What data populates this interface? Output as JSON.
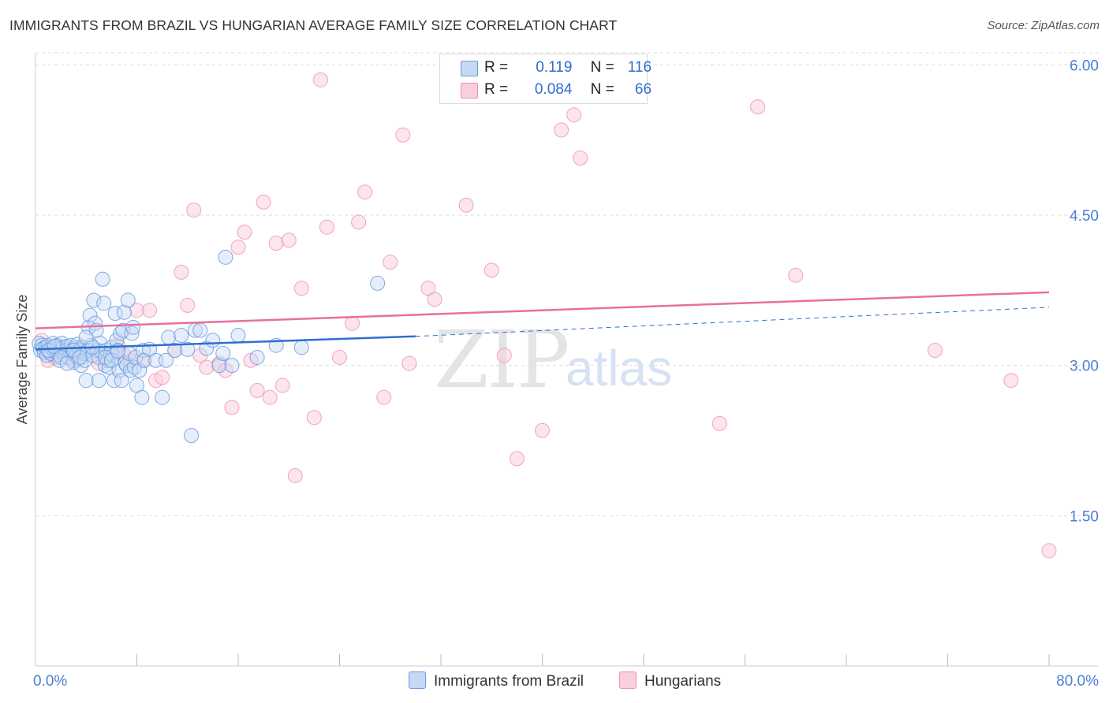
{
  "title": "IMMIGRANTS FROM BRAZIL VS HUNGARIAN AVERAGE FAMILY SIZE CORRELATION CHART",
  "source": "Source: ZipAtlas.com",
  "watermark": {
    "zip": "ZIP",
    "atlas": "atlas"
  },
  "legend": {
    "rows": [
      {
        "r_label": "R =",
        "r_value": "0.119",
        "n_label": "N =",
        "n_value": "116",
        "color": "#6a9be0"
      },
      {
        "r_label": "R =",
        "r_value": "0.084",
        "n_label": "N =",
        "n_value": "66",
        "color": "#ef8fae"
      }
    ]
  },
  "bottom_legend": {
    "brazil": "Immigrants from Brazil",
    "hungarians": "Hungarians"
  },
  "chart_data": {
    "type": "scatter",
    "title": "IMMIGRANTS FROM BRAZIL VS HUNGARIAN AVERAGE FAMILY SIZE CORRELATION CHART",
    "xlabel": "",
    "ylabel": "Average Family Size",
    "xlim": [
      0,
      80
    ],
    "ylim": [
      0,
      6.12
    ],
    "x_tick_labels": [
      "0.0%",
      "80.0%"
    ],
    "y_ticks": [
      1.5,
      3.0,
      4.5,
      6.0
    ],
    "y_tick_labels": [
      "1.50",
      "3.00",
      "4.50",
      "6.00"
    ],
    "grid": "horizontal dashed",
    "legend_placement": "top-center",
    "colors": {
      "brazil": "#6a9be0",
      "hungarians": "#ef8fae",
      "brazil_line": "#2f6fcf",
      "hungarians_line": "#e8719a"
    },
    "series": [
      {
        "name": "Immigrants from Brazil",
        "R": 0.119,
        "N": 116,
        "trend": {
          "x0": 0,
          "y0": 3.16,
          "x1": 30,
          "y1": 3.29,
          "dashed_to_x": 80,
          "dashed_to_y": 3.58
        },
        "points": [
          [
            0.3,
            3.22
          ],
          [
            0.4,
            3.15
          ],
          [
            0.5,
            3.2
          ],
          [
            0.6,
            3.17
          ],
          [
            0.7,
            3.13
          ],
          [
            0.8,
            3.18
          ],
          [
            0.9,
            3.1
          ],
          [
            1.0,
            3.2
          ],
          [
            1.1,
            3.15
          ],
          [
            1.2,
            3.12
          ],
          [
            1.3,
            3.18
          ],
          [
            1.4,
            3.22
          ],
          [
            1.5,
            3.14
          ],
          [
            1.6,
            3.16
          ],
          [
            1.7,
            3.2
          ],
          [
            1.8,
            3.11
          ],
          [
            1.9,
            3.05
          ],
          [
            2.0,
            3.15
          ],
          [
            2.1,
            3.22
          ],
          [
            2.2,
            3.18
          ],
          [
            2.3,
            3.1
          ],
          [
            2.4,
            3.15
          ],
          [
            2.5,
            3.19
          ],
          [
            2.6,
            3.08
          ],
          [
            2.7,
            3.14
          ],
          [
            2.8,
            3.2
          ],
          [
            2.9,
            3.12
          ],
          [
            3.0,
            3.03
          ],
          [
            3.1,
            3.17
          ],
          [
            3.2,
            3.1
          ],
          [
            3.3,
            3.21
          ],
          [
            3.4,
            3.06
          ],
          [
            3.5,
            3.15
          ],
          [
            3.6,
            3.0
          ],
          [
            3.7,
            3.18
          ],
          [
            3.8,
            3.12
          ],
          [
            3.9,
            3.05
          ],
          [
            4.0,
            2.85
          ],
          [
            4.1,
            3.15
          ],
          [
            4.2,
            3.38
          ],
          [
            4.3,
            3.5
          ],
          [
            4.4,
            3.2
          ],
          [
            4.5,
            3.1
          ],
          [
            4.6,
            3.65
          ],
          [
            4.7,
            3.42
          ],
          [
            4.8,
            3.35
          ],
          [
            4.9,
            3.15
          ],
          [
            5.0,
            3.08
          ],
          [
            5.1,
            3.22
          ],
          [
            5.2,
            3.14
          ],
          [
            5.3,
            3.86
          ],
          [
            5.4,
            3.62
          ],
          [
            5.5,
            3.0
          ],
          [
            5.6,
            3.15
          ],
          [
            5.7,
            3.05
          ],
          [
            5.8,
            2.98
          ],
          [
            5.9,
            3.12
          ],
          [
            6.0,
            3.18
          ],
          [
            6.1,
            3.1
          ],
          [
            6.2,
            2.85
          ],
          [
            6.3,
            3.52
          ],
          [
            6.4,
            3.25
          ],
          [
            6.5,
            3.15
          ],
          [
            6.6,
            2.95
          ],
          [
            6.7,
            3.32
          ],
          [
            6.8,
            2.85
          ],
          [
            6.9,
            3.35
          ],
          [
            7.0,
            3.53
          ],
          [
            7.1,
            3.02
          ],
          [
            7.2,
            3.0
          ],
          [
            7.3,
            3.65
          ],
          [
            7.4,
            3.12
          ],
          [
            7.5,
            2.95
          ],
          [
            7.6,
            3.32
          ],
          [
            7.7,
            3.38
          ],
          [
            7.8,
            2.98
          ],
          [
            7.9,
            3.08
          ],
          [
            8.0,
            2.8
          ],
          [
            8.2,
            2.95
          ],
          [
            8.4,
            2.68
          ],
          [
            8.5,
            3.15
          ],
          [
            8.6,
            3.05
          ],
          [
            9.0,
            3.16
          ],
          [
            9.5,
            3.05
          ],
          [
            10.0,
            2.68
          ],
          [
            10.3,
            3.05
          ],
          [
            10.5,
            3.28
          ],
          [
            11.0,
            3.15
          ],
          [
            11.5,
            3.3
          ],
          [
            12.0,
            3.16
          ],
          [
            12.3,
            2.3
          ],
          [
            12.6,
            3.35
          ],
          [
            13.0,
            3.35
          ],
          [
            13.5,
            3.17
          ],
          [
            14.0,
            3.25
          ],
          [
            14.5,
            3.0
          ],
          [
            14.8,
            3.12
          ],
          [
            15.0,
            4.08
          ],
          [
            15.5,
            3.0
          ],
          [
            16.0,
            3.3
          ],
          [
            17.5,
            3.08
          ],
          [
            19.0,
            3.2
          ],
          [
            21.0,
            3.18
          ],
          [
            27.0,
            3.82
          ],
          [
            1.0,
            3.15
          ],
          [
            1.5,
            3.19
          ],
          [
            2.0,
            3.08
          ],
          [
            2.5,
            3.02
          ],
          [
            3.0,
            3.15
          ],
          [
            3.5,
            3.08
          ],
          [
            4.0,
            3.28
          ],
          [
            4.5,
            3.18
          ],
          [
            5.0,
            2.85
          ],
          [
            5.5,
            3.08
          ],
          [
            6.0,
            3.05
          ],
          [
            6.5,
            3.14
          ]
        ]
      },
      {
        "name": "Hungarians",
        "R": 0.084,
        "N": 66,
        "trend": {
          "x0": 0,
          "y0": 3.37,
          "x1": 80,
          "y1": 3.73
        },
        "points": [
          [
            0.5,
            3.25
          ],
          [
            1.0,
            3.05
          ],
          [
            1.5,
            3.1
          ],
          [
            2.5,
            3.15
          ],
          [
            3.0,
            3.05
          ],
          [
            4.0,
            3.12
          ],
          [
            5.0,
            3.02
          ],
          [
            5.5,
            3.08
          ],
          [
            6.0,
            3.12
          ],
          [
            6.5,
            3.2
          ],
          [
            7.0,
            3.1
          ],
          [
            7.5,
            3.05
          ],
          [
            8.0,
            3.55
          ],
          [
            8.5,
            3.05
          ],
          [
            9.0,
            3.55
          ],
          [
            9.5,
            2.85
          ],
          [
            10.0,
            2.88
          ],
          [
            11.0,
            3.15
          ],
          [
            11.5,
            3.93
          ],
          [
            12.0,
            3.6
          ],
          [
            12.5,
            4.55
          ],
          [
            13.0,
            3.1
          ],
          [
            13.5,
            2.98
          ],
          [
            14.5,
            3.02
          ],
          [
            15.0,
            2.95
          ],
          [
            15.5,
            2.58
          ],
          [
            16.0,
            4.18
          ],
          [
            16.5,
            4.33
          ],
          [
            17.0,
            3.05
          ],
          [
            17.5,
            2.75
          ],
          [
            18.0,
            4.63
          ],
          [
            18.5,
            2.68
          ],
          [
            19.0,
            4.22
          ],
          [
            19.5,
            2.8
          ],
          [
            20.0,
            4.25
          ],
          [
            20.5,
            1.9
          ],
          [
            21.0,
            3.77
          ],
          [
            22.0,
            2.48
          ],
          [
            22.5,
            5.85
          ],
          [
            23.0,
            4.38
          ],
          [
            24.0,
            3.08
          ],
          [
            25.0,
            3.42
          ],
          [
            25.5,
            4.43
          ],
          [
            26.0,
            4.73
          ],
          [
            27.5,
            2.68
          ],
          [
            28.0,
            4.03
          ],
          [
            29.0,
            5.3
          ],
          [
            29.5,
            3.02
          ],
          [
            31.0,
            3.77
          ],
          [
            31.5,
            3.66
          ],
          [
            34.0,
            4.6
          ],
          [
            36.0,
            3.95
          ],
          [
            37.0,
            3.1
          ],
          [
            38.0,
            2.07
          ],
          [
            40.0,
            2.35
          ],
          [
            41.5,
            5.35
          ],
          [
            42.5,
            5.5
          ],
          [
            43.0,
            5.07
          ],
          [
            54.0,
            2.42
          ],
          [
            57.0,
            5.58
          ],
          [
            60.0,
            3.9
          ],
          [
            71.0,
            3.15
          ],
          [
            77.0,
            2.85
          ],
          [
            80.0,
            1.15
          ],
          [
            1.5,
            3.08
          ],
          [
            3.5,
            3.18
          ]
        ]
      }
    ]
  }
}
